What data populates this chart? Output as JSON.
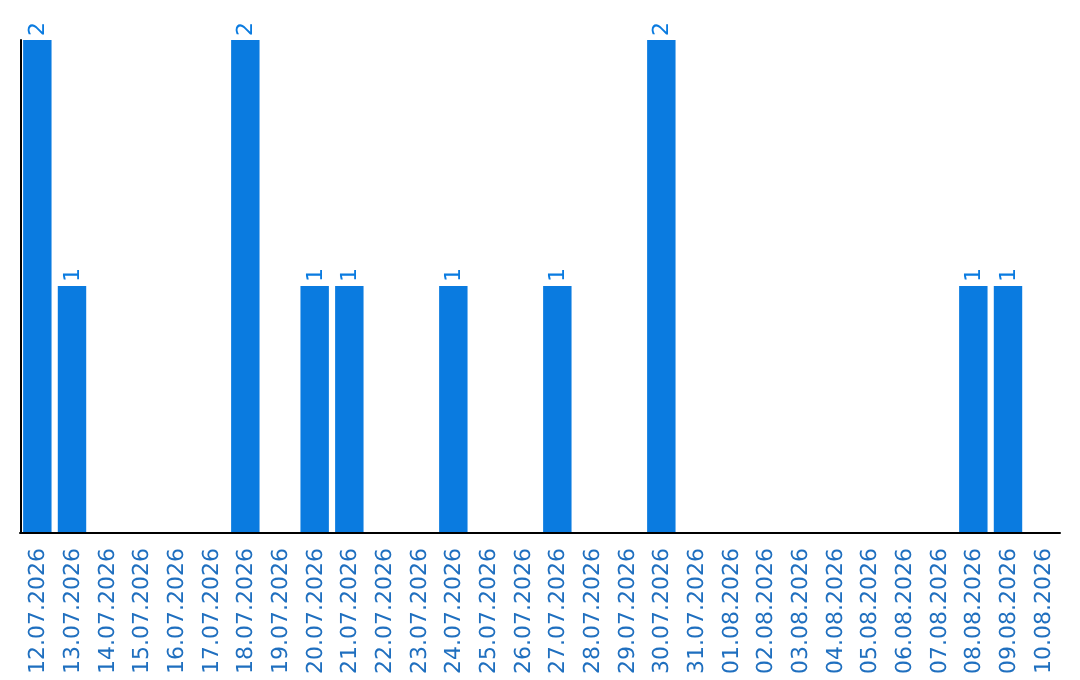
{
  "chart_data": {
    "type": "bar",
    "categories": [
      "12.07.2026",
      "13.07.2026",
      "14.07.2026",
      "15.07.2026",
      "16.07.2026",
      "17.07.2026",
      "18.07.2026",
      "19.07.2026",
      "20.07.2026",
      "21.07.2026",
      "22.07.2026",
      "23.07.2026",
      "24.07.2026",
      "25.07.2026",
      "26.07.2026",
      "27.07.2026",
      "28.07.2026",
      "29.07.2026",
      "30.07.2026",
      "31.07.2026",
      "01.08.2026",
      "02.08.2026",
      "03.08.2026",
      "04.08.2026",
      "05.08.2026",
      "06.08.2026",
      "07.08.2026",
      "08.08.2026",
      "09.08.2026",
      "10.08.2026"
    ],
    "values": [
      2,
      1,
      0,
      0,
      0,
      0,
      2,
      0,
      1,
      1,
      0,
      0,
      1,
      0,
      0,
      1,
      0,
      0,
      2,
      0,
      0,
      0,
      0,
      0,
      0,
      0,
      0,
      1,
      1,
      0
    ],
    "value_labels": [
      "2",
      "1",
      null,
      null,
      null,
      null,
      "2",
      null,
      "1",
      "1",
      null,
      null,
      "1",
      null,
      null,
      "1",
      null,
      null,
      "2",
      null,
      null,
      null,
      null,
      null,
      null,
      null,
      null,
      "1",
      "1",
      null
    ],
    "color": "#0a7be0",
    "tick_labels": "x",
    "grid": false
  }
}
